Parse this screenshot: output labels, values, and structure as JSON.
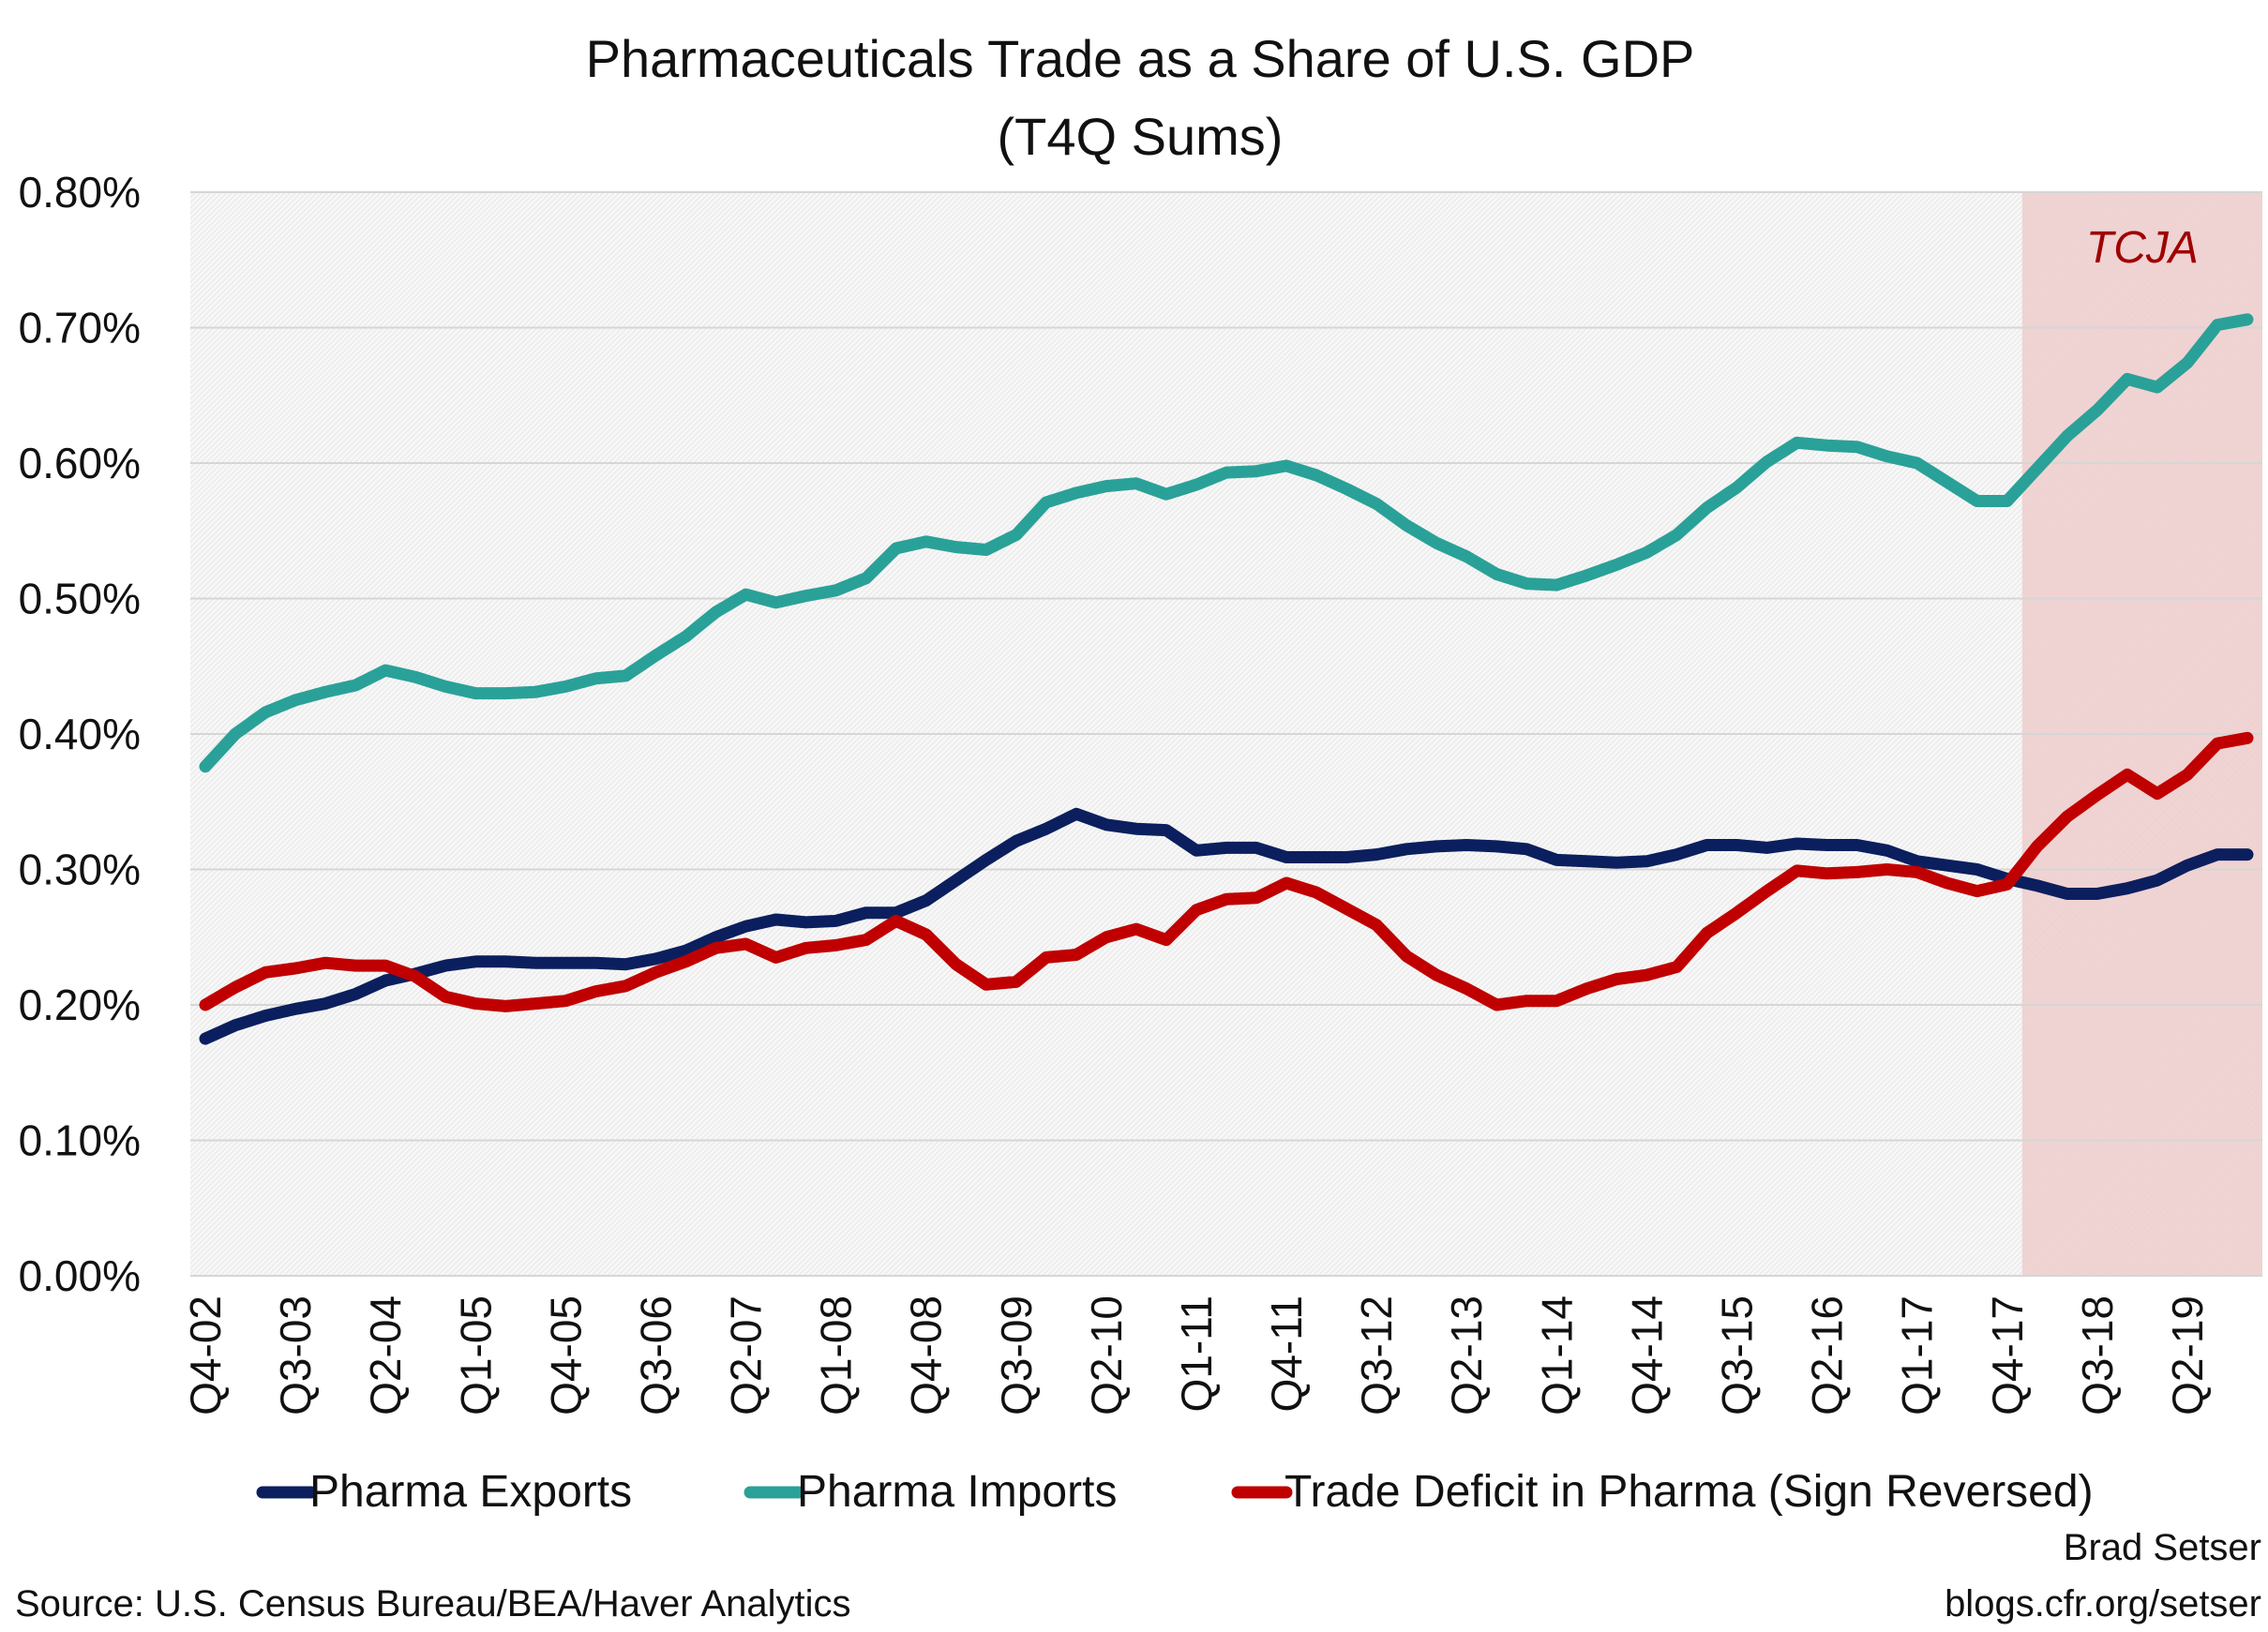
{
  "chart_data": {
    "type": "line",
    "title": "Pharmaceuticals Trade as a Share of U.S. GDP",
    "subtitle": "(T4Q Sums)",
    "xlabel": "",
    "ylabel": "",
    "ylim": [
      0,
      0.8
    ],
    "y_ticks": [
      "0.00%",
      "0.10%",
      "0.20%",
      "0.30%",
      "0.40%",
      "0.50%",
      "0.60%",
      "0.70%",
      "0.80%"
    ],
    "grid": true,
    "legend_position": "bottom",
    "x_tick_labels": [
      "Q4-02",
      "Q3-03",
      "Q2-04",
      "Q1-05",
      "Q4-05",
      "Q3-06",
      "Q2-07",
      "Q1-08",
      "Q4-08",
      "Q3-09",
      "Q2-10",
      "Q1-11",
      "Q4-11",
      "Q3-12",
      "Q2-13",
      "Q1-14",
      "Q4-14",
      "Q3-15",
      "Q2-16",
      "Q1-17",
      "Q4-17",
      "Q3-18",
      "Q2-19"
    ],
    "x_start": "Q4-02",
    "x_end": "Q4-19",
    "annotation": {
      "label": "TCJA",
      "from": "Q1-18",
      "to": "Q4-19",
      "color": "#efcccc",
      "text_color": "#a00000"
    },
    "series": [
      {
        "name": "Pharma Exports",
        "color": "#0b1f5e",
        "values": [
          0.175,
          0.185,
          0.192,
          0.197,
          0.201,
          0.208,
          0.218,
          0.223,
          0.229,
          0.232,
          0.232,
          0.231,
          0.231,
          0.231,
          0.23,
          0.234,
          0.24,
          0.25,
          0.258,
          0.263,
          0.261,
          0.262,
          0.268,
          0.268,
          0.277,
          0.292,
          0.307,
          0.321,
          0.33,
          0.341,
          0.333,
          0.33,
          0.329,
          0.314,
          0.316,
          0.316,
          0.309,
          0.309,
          0.309,
          0.311,
          0.315,
          0.317,
          0.318,
          0.317,
          0.315,
          0.307,
          0.306,
          0.305,
          0.306,
          0.311,
          0.318,
          0.318,
          0.316,
          0.319,
          0.318,
          0.318,
          0.314,
          0.306,
          0.303,
          0.3,
          0.293,
          0.288,
          0.282,
          0.282,
          0.286,
          0.292,
          0.303,
          0.311,
          0.311
        ]
      },
      {
        "name": "Pharma Imports",
        "color": "#2aa198",
        "values": [
          0.376,
          0.4,
          0.416,
          0.425,
          0.431,
          0.436,
          0.447,
          0.442,
          0.435,
          0.43,
          0.43,
          0.431,
          0.435,
          0.441,
          0.443,
          0.458,
          0.472,
          0.49,
          0.503,
          0.497,
          0.502,
          0.506,
          0.515,
          0.537,
          0.542,
          0.538,
          0.536,
          0.547,
          0.571,
          0.578,
          0.583,
          0.585,
          0.577,
          0.584,
          0.593,
          0.594,
          0.598,
          0.591,
          0.581,
          0.57,
          0.554,
          0.541,
          0.531,
          0.518,
          0.511,
          0.51,
          0.517,
          0.525,
          0.534,
          0.547,
          0.567,
          0.582,
          0.601,
          0.615,
          0.613,
          0.612,
          0.605,
          0.6,
          0.586,
          0.572,
          0.572,
          0.596,
          0.62,
          0.639,
          0.662,
          0.656,
          0.674,
          0.702,
          0.706
        ]
      },
      {
        "name": "Trade Deficit in Pharma (Sign Reversed)",
        "color": "#c00000",
        "values": [
          0.2,
          0.213,
          0.224,
          0.227,
          0.231,
          0.229,
          0.229,
          0.221,
          0.206,
          0.201,
          0.199,
          0.201,
          0.203,
          0.21,
          0.214,
          0.224,
          0.232,
          0.242,
          0.245,
          0.235,
          0.242,
          0.244,
          0.248,
          0.262,
          0.252,
          0.23,
          0.215,
          0.217,
          0.235,
          0.237,
          0.25,
          0.256,
          0.248,
          0.27,
          0.278,
          0.279,
          0.29,
          0.283,
          0.271,
          0.259,
          0.236,
          0.222,
          0.212,
          0.2,
          0.203,
          0.203,
          0.212,
          0.219,
          0.222,
          0.228,
          0.253,
          0.268,
          0.284,
          0.299,
          0.297,
          0.298,
          0.3,
          0.298,
          0.29,
          0.284,
          0.289,
          0.317,
          0.339,
          0.355,
          0.37,
          0.356,
          0.37,
          0.393,
          0.397
        ]
      }
    ]
  },
  "footer": {
    "source": "Source: U.S. Census Bureau/BEA/Haver Analytics",
    "author": "Brad Setser",
    "url": "blogs.cfr.org/setser"
  }
}
